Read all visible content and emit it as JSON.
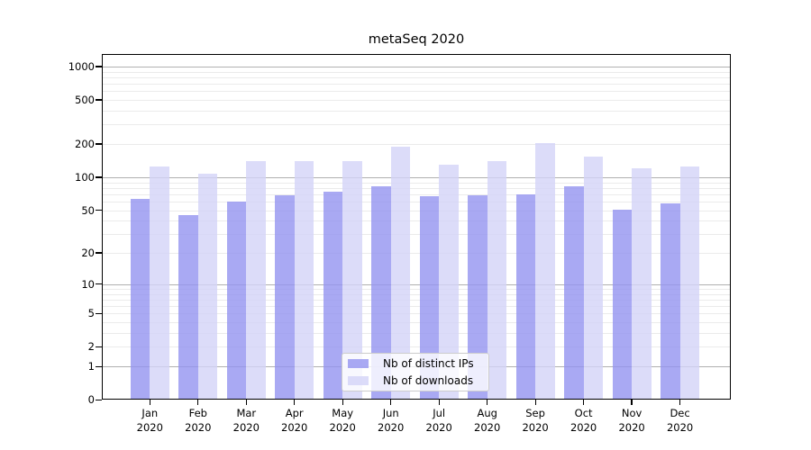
{
  "title": "metaSeq 2020",
  "chart_data": {
    "type": "bar",
    "title": "metaSeq 2020",
    "scale": "log1p",
    "grid": "on",
    "legend_position": "lower-center",
    "categories": [
      "Jan",
      "Feb",
      "Mar",
      "Apr",
      "May",
      "Jun",
      "Jul",
      "Aug",
      "Sep",
      "Oct",
      "Nov",
      "Dec"
    ],
    "year": "2020",
    "series": [
      {
        "name": "Nb of distinct IPs",
        "color": "rgba(148,148,240,0.8)",
        "values": [
          64,
          45,
          60,
          69,
          74,
          82,
          67,
          68,
          70,
          82,
          51,
          58
        ]
      },
      {
        "name": "Nb of downloads",
        "color": "rgba(211,211,247,0.8)",
        "values": [
          126,
          107,
          140,
          140,
          140,
          190,
          129,
          140,
          204,
          153,
          121,
          125
        ]
      }
    ],
    "yticks": [
      0,
      1,
      2,
      5,
      10,
      20,
      50,
      100,
      200,
      500,
      1000
    ],
    "ylim": [
      0,
      1300
    ],
    "xlabel": "",
    "ylabel": ""
  },
  "colors": {
    "bar_distinct_ips": "rgba(148,148,240,0.8)",
    "bar_downloads": "rgba(211,211,247,0.8)",
    "grid_minor": "#ebebeb",
    "grid_major": "#b0b0b0",
    "axis": "#000000",
    "legend_border": "#cccccc"
  }
}
